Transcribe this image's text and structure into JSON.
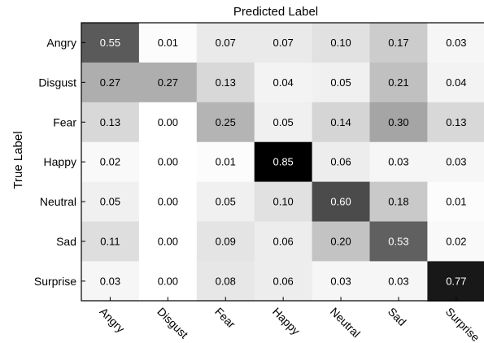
{
  "chart_data": {
    "type": "heatmap",
    "title": "Predicted Label",
    "xlabel": "",
    "ylabel": "True Label",
    "x_categories": [
      "Angry",
      "Disgust",
      "Fear",
      "Happy",
      "Neutral",
      "Sad",
      "Surprise"
    ],
    "y_categories": [
      "Angry",
      "Disgust",
      "Fear",
      "Happy",
      "Neutral",
      "Sad",
      "Surprise"
    ],
    "values": [
      [
        0.55,
        0.01,
        0.07,
        0.07,
        0.1,
        0.17,
        0.03
      ],
      [
        0.27,
        0.27,
        0.13,
        0.04,
        0.05,
        0.21,
        0.04
      ],
      [
        0.13,
        0.0,
        0.25,
        0.05,
        0.14,
        0.3,
        0.13
      ],
      [
        0.02,
        0.0,
        0.01,
        0.85,
        0.06,
        0.03,
        0.03
      ],
      [
        0.05,
        0.0,
        0.05,
        0.1,
        0.6,
        0.18,
        0.01
      ],
      [
        0.11,
        0.0,
        0.09,
        0.06,
        0.2,
        0.53,
        0.02
      ],
      [
        0.03,
        0.0,
        0.08,
        0.06,
        0.03,
        0.03,
        0.77
      ]
    ],
    "color_scale": "grayscale (white = 0, black = max)",
    "vlim": [
      0,
      0.85
    ],
    "cell_text_light_threshold": 0.5,
    "value_decimals": 2
  }
}
